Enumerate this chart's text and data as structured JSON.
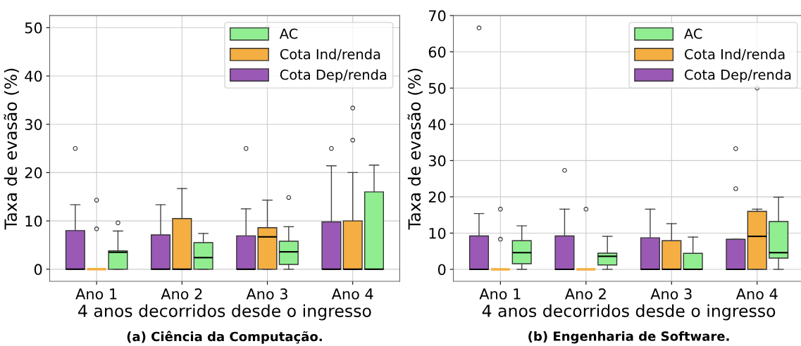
{
  "chart_data": [
    {
      "type": "box",
      "ylabel": "Taxa de evasão (%)",
      "xlabel": "4 anos decorridos desde o ingresso",
      "categories": [
        "Ano 1",
        "Ano 2",
        "Ano 3",
        "Ano 4"
      ],
      "ylim": [
        -2.5,
        52.5
      ],
      "yticks": [
        0,
        10,
        20,
        30,
        40,
        50
      ],
      "grid": true,
      "legend": "top right",
      "annotations": [
        "(a) Ciência da Computação."
      ],
      "series": [
        {
          "name": "Cota Dep/renda",
          "color": "#9b59b6",
          "boxes": [
            {
              "low": 0,
              "q1": 0,
              "median": 0,
              "q3": 8.0,
              "high": 13.35,
              "outliers": [
                25
              ]
            },
            {
              "low": 0,
              "q1": 0,
              "median": 0,
              "q3": 7.1,
              "high": 13.35
            },
            {
              "low": 0,
              "q1": 0,
              "median": 0,
              "q3": 6.9,
              "high": 12.5,
              "outliers": [
                25
              ]
            },
            {
              "low": 0,
              "q1": 0,
              "median": 0,
              "q3": 9.8,
              "high": 21.4,
              "outliers": [
                25
              ]
            }
          ]
        },
        {
          "name": "Cota Ind/renda",
          "color": "#f5ae42",
          "boxes": [
            {
              "low": 0,
              "q1": 0,
              "median": 0,
              "q3": 0,
              "high": 0,
              "outliers": [
                8.35,
                14.3
              ]
            },
            {
              "low": 0,
              "q1": 0,
              "median": 0,
              "q3": 10.5,
              "high": 16.7
            },
            {
              "low": 0,
              "q1": 0,
              "median": 6.7,
              "q3": 8.6,
              "high": 14.3,
              "outliers": [
                50
              ]
            },
            {
              "low": 0,
              "q1": 0,
              "median": 0,
              "q3": 10.0,
              "high": 20.0,
              "outliers": [
                26.7,
                33.35
              ]
            }
          ]
        },
        {
          "name": "AC",
          "color": "#90ee90",
          "boxes": [
            {
              "low": 0,
              "q1": 0,
              "median": 3.5,
              "q3": 3.8,
              "high": 7.9,
              "outliers": [
                9.6
              ]
            },
            {
              "low": 0,
              "q1": 0,
              "median": 2.4,
              "q3": 5.5,
              "high": 7.4
            },
            {
              "low": 0,
              "q1": 1.0,
              "median": 3.6,
              "q3": 5.8,
              "high": 8.8,
              "outliers": [
                14.85
              ]
            },
            {
              "low": 0,
              "q1": 0,
              "median": 0,
              "q3": 16.0,
              "high": 21.55
            }
          ]
        }
      ]
    },
    {
      "type": "box",
      "ylabel": "Taxa de evasão (%)",
      "xlabel": "4 anos decorridos desde o ingresso",
      "categories": [
        "Ano 1",
        "Ano 2",
        "Ano 3",
        "Ano 4"
      ],
      "ylim": [
        -3.3,
        70
      ],
      "yticks": [
        0,
        10,
        20,
        30,
        40,
        50,
        60,
        70
      ],
      "grid": true,
      "legend": "top right",
      "annotations": [
        "(b) Engenharia de Software."
      ],
      "series": [
        {
          "name": "Cota Dep/renda",
          "color": "#9b59b6",
          "boxes": [
            {
              "low": 0,
              "q1": 0,
              "median": 0,
              "q3": 9.2,
              "high": 15.4,
              "outliers": [
                66.6
              ]
            },
            {
              "low": 0,
              "q1": 0,
              "median": 0,
              "q3": 9.2,
              "high": 16.6,
              "outliers": [
                27.3
              ]
            },
            {
              "low": 0,
              "q1": 0,
              "median": 0,
              "q3": 8.7,
              "high": 16.6
            },
            {
              "low": 0,
              "q1": 0,
              "median": 0,
              "q3": 8.3,
              "high": 8.3,
              "outliers": [
                22.25,
                33.3
              ]
            }
          ]
        },
        {
          "name": "Cota Ind/renda",
          "color": "#f5ae42",
          "boxes": [
            {
              "low": 0,
              "q1": 0,
              "median": 0,
              "q3": 0,
              "high": 0,
              "outliers": [
                8.3,
                16.6
              ]
            },
            {
              "low": 0,
              "q1": 0,
              "median": 0,
              "q3": 0,
              "high": 0,
              "outliers": [
                16.6
              ]
            },
            {
              "low": 0,
              "q1": 0,
              "median": 0,
              "q3": 7.9,
              "high": 12.6
            },
            {
              "low": 0,
              "q1": 0,
              "median": 9.1,
              "q3": 16.0,
              "high": 16.6,
              "outliers": [
                50
              ]
            }
          ]
        },
        {
          "name": "AC",
          "color": "#90ee90",
          "boxes": [
            {
              "low": 0,
              "q1": 1.55,
              "median": 4.6,
              "q3": 7.9,
              "high": 12.0
            },
            {
              "low": 0,
              "q1": 1.2,
              "median": 3.6,
              "q3": 4.45,
              "high": 9.1
            },
            {
              "low": 0,
              "q1": 0,
              "median": 0,
              "q3": 4.4,
              "high": 8.9
            },
            {
              "low": 0,
              "q1": 3.1,
              "median": 4.6,
              "q3": 13.2,
              "high": 19.9
            }
          ]
        }
      ]
    }
  ]
}
